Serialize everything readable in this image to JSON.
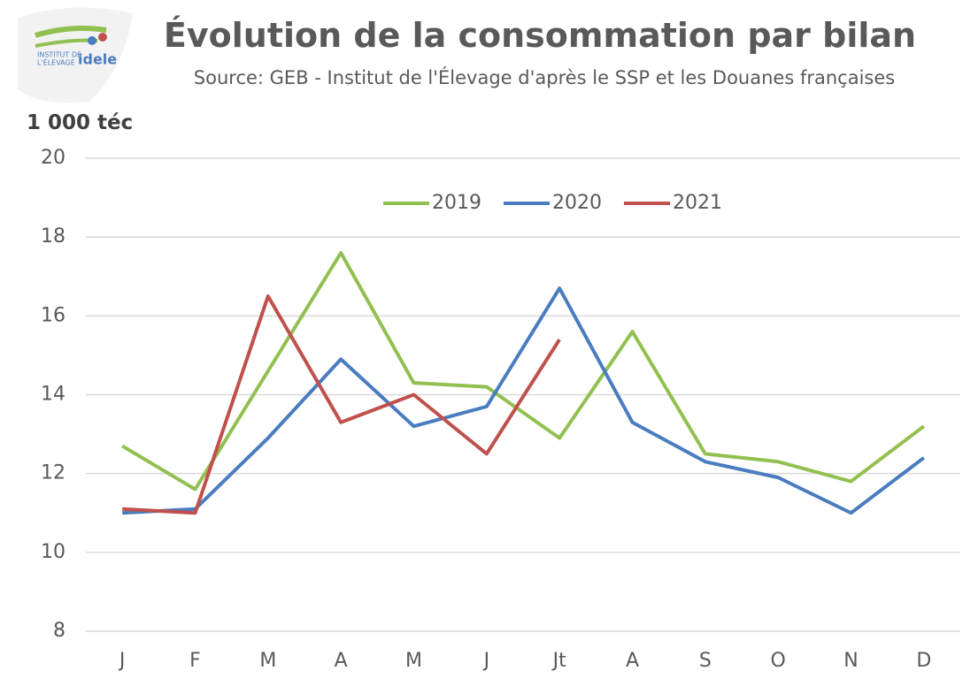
{
  "logo": {
    "line1": "INSTITUT DE",
    "line2": "L'ÉLEVAGE",
    "brand": "idele"
  },
  "chart_data": {
    "type": "line",
    "title": "Évolution de la consommation par bilan",
    "subtitle": "Source: GEB - Institut de l'Élevage d'après le SSP et les Douanes françaises",
    "y_label": "1 000 téc",
    "categories": [
      "J",
      "F",
      "M",
      "A",
      "M",
      "J",
      "Jt",
      "A",
      "S",
      "O",
      "N",
      "D"
    ],
    "series": [
      {
        "name": "2019",
        "color": "#92c050",
        "values": [
          12.7,
          11.6,
          14.6,
          17.6,
          14.3,
          14.2,
          12.9,
          15.6,
          12.5,
          12.3,
          11.8,
          13.2
        ]
      },
      {
        "name": "2020",
        "color": "#4a7cc0",
        "values": [
          11.0,
          11.1,
          12.9,
          14.9,
          13.2,
          13.7,
          16.7,
          13.3,
          12.3,
          11.9,
          11.0,
          12.4
        ]
      },
      {
        "name": "2021",
        "color": "#c0504d",
        "values": [
          11.1,
          11.0,
          16.5,
          13.3,
          14.0,
          12.5,
          15.4,
          null,
          null,
          null,
          null,
          null
        ]
      }
    ],
    "ylim": [
      8,
      20
    ],
    "yticks": [
      8,
      10,
      12,
      14,
      16,
      18,
      20
    ],
    "grid": true,
    "legend": "top"
  }
}
